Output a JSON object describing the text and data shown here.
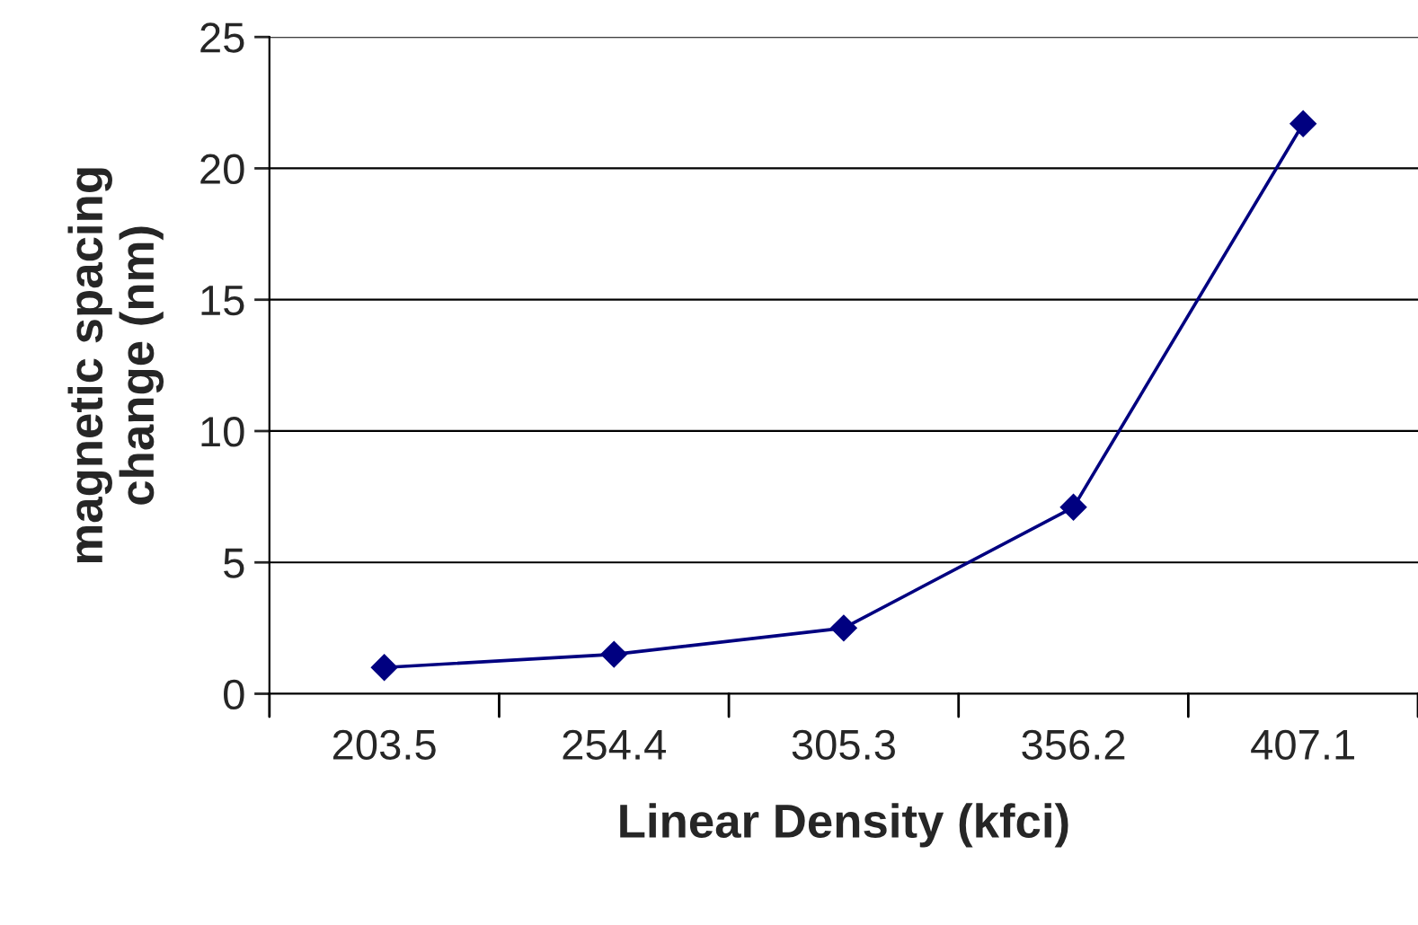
{
  "chart_data": {
    "type": "line",
    "xlabel": "Linear Density (kfci)",
    "ylabel": "magnetic spacing\nchange (nm)",
    "categories": [
      "203.5",
      "254.4",
      "305.3",
      "356.2",
      "407.1"
    ],
    "series": [
      {
        "color": "#000080",
        "values": [
          1.0,
          1.5,
          2.5,
          7.1,
          21.7
        ]
      }
    ],
    "ylim": [
      0,
      25
    ],
    "yticks": [
      0,
      5,
      10,
      15,
      20,
      25
    ],
    "grid": "y",
    "marker": "diamond",
    "line_style": "solid",
    "legend": false
  }
}
